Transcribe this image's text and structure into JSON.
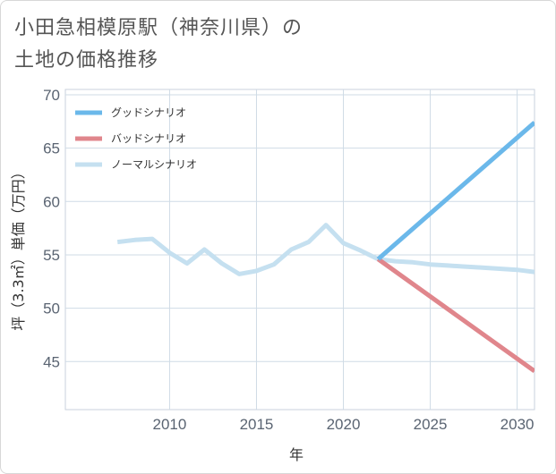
{
  "title_lines": [
    "小田急相模原駅（神奈川県）の",
    "土地の価格推移"
  ],
  "chart_data": {
    "type": "line",
    "xlabel": "年",
    "ylabel": "坪（3.3㎡）単価（万円）",
    "xlim": [
      2004,
      2031
    ],
    "ylim": [
      40.5,
      70.5
    ],
    "xticks": [
      2010,
      2015,
      2020,
      2025,
      2030
    ],
    "yticks": [
      45,
      50,
      55,
      60,
      65,
      70
    ],
    "grid": true,
    "legend_position": "top-left",
    "series": [
      {
        "name": "グッドシナリオ",
        "color": "#6bb8ea",
        "x": [
          2022,
          2031
        ],
        "y": [
          54.6,
          67.4
        ]
      },
      {
        "name": "バッドシナリオ",
        "color": "#e0868c",
        "x": [
          2022,
          2031
        ],
        "y": [
          54.6,
          44.1
        ]
      },
      {
        "name": "ノーマルシナリオ",
        "color": "#c5e0f0",
        "x": [
          2007,
          2008,
          2009,
          2010,
          2011,
          2012,
          2013,
          2014,
          2015,
          2016,
          2017,
          2018,
          2019,
          2020,
          2021,
          2022,
          2023,
          2024,
          2025,
          2026,
          2027,
          2028,
          2029,
          2030,
          2031
        ],
        "y": [
          56.2,
          56.4,
          56.5,
          55.2,
          54.2,
          55.5,
          54.2,
          53.2,
          53.5,
          54.1,
          55.5,
          56.2,
          57.8,
          56.1,
          55.4,
          54.6,
          54.4,
          54.3,
          54.1,
          54.0,
          53.9,
          53.8,
          53.7,
          53.6,
          53.4
        ]
      }
    ]
  }
}
